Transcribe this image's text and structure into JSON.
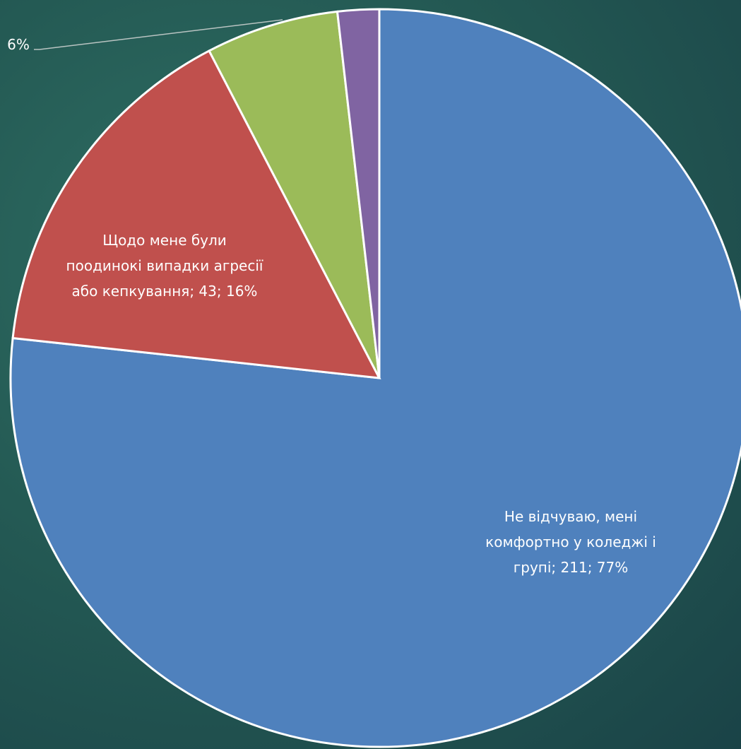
{
  "chart_data": {
    "type": "pie",
    "categories": [
      "Не відчуваю, мені комфортно у коледжі і групі",
      "Щодо мене були поодинокі випадки агресії або кепкування",
      "",
      ""
    ],
    "values": [
      211,
      43,
      16,
      5
    ],
    "percents": [
      "77%",
      "16%",
      "6%",
      ""
    ],
    "colors": [
      "#4F81BD",
      "#C0504D",
      "#9BBB59",
      "#8064A2"
    ],
    "labels": [
      {
        "lines": [
          "Не відчуваю, мені",
          "комфортно у коледжі і",
          "групі; 211; 77%"
        ]
      },
      {
        "lines": [
          "Щодо мене були",
          "поодинокі випадки агресії",
          "або кепкування; 43; 16%"
        ]
      },
      {
        "lines": [
          "6%"
        ]
      }
    ],
    "legend": "none",
    "start_angle": "12 o'clock, clockwise"
  }
}
